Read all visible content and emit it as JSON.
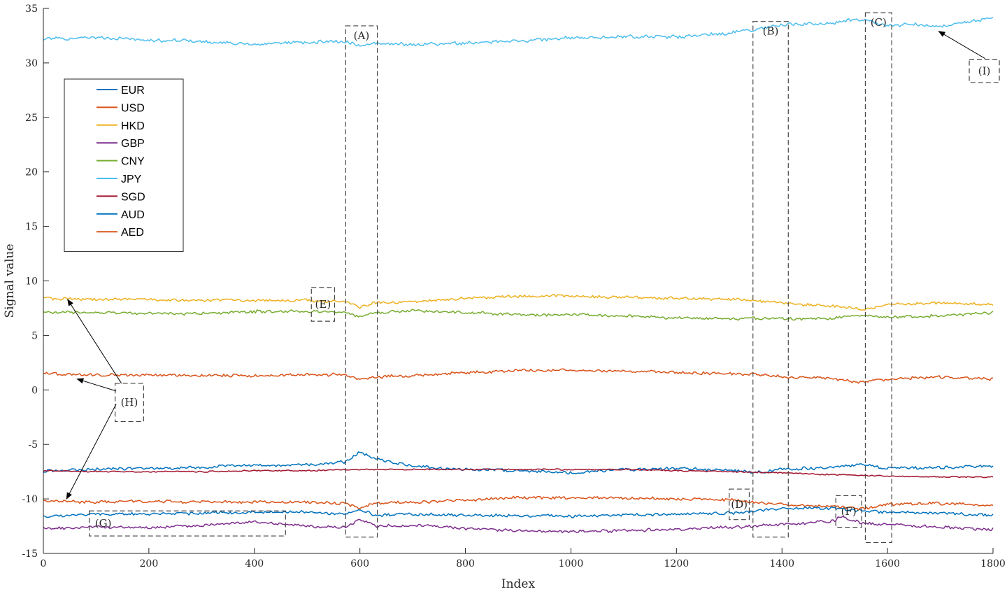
{
  "chart_data": {
    "type": "line",
    "title": "",
    "xlabel": "Index",
    "ylabel": "Signal value",
    "xlim": [
      0,
      1800
    ],
    "ylim": [
      -15,
      35
    ],
    "xticks": [
      0,
      200,
      400,
      600,
      800,
      1000,
      1200,
      1400,
      1600,
      1800
    ],
    "yticks": [
      -15,
      -10,
      -5,
      0,
      5,
      10,
      15,
      20,
      25,
      30,
      35
    ],
    "grid": false,
    "legend_position": "top-left",
    "series": [
      {
        "name": "EUR",
        "color": "#0072BD",
        "x": [
          0,
          100,
          200,
          300,
          400,
          500,
          570,
          600,
          630,
          700,
          800,
          900,
          1000,
          1100,
          1200,
          1300,
          1350,
          1400,
          1450,
          1500,
          1550,
          1600,
          1700,
          1800
        ],
        "y": [
          -7.4,
          -7.3,
          -7.2,
          -7.1,
          -6.9,
          -6.9,
          -6.6,
          -5.7,
          -6.3,
          -7.0,
          -7.3,
          -7.4,
          -7.6,
          -7.3,
          -7.2,
          -7.4,
          -7.6,
          -7.3,
          -7.2,
          -7.1,
          -6.8,
          -7.2,
          -7.1,
          -7.0
        ]
      },
      {
        "name": "USD",
        "color": "#D95319",
        "x": [
          0,
          100,
          200,
          300,
          400,
          500,
          570,
          600,
          630,
          700,
          800,
          900,
          1000,
          1100,
          1200,
          1300,
          1350,
          1400,
          1450,
          1500,
          1550,
          1600,
          1700,
          1800
        ],
        "y": [
          1.5,
          1.4,
          1.4,
          1.3,
          1.3,
          1.4,
          1.4,
          0.9,
          1.2,
          1.3,
          1.6,
          1.8,
          1.8,
          1.7,
          1.6,
          1.5,
          1.4,
          1.2,
          1.1,
          1.0,
          0.7,
          1.0,
          1.2,
          1.0
        ]
      },
      {
        "name": "HKD",
        "color": "#EDB120",
        "x": [
          0,
          100,
          200,
          300,
          400,
          500,
          570,
          600,
          630,
          700,
          800,
          900,
          1000,
          1100,
          1200,
          1300,
          1350,
          1400,
          1450,
          1500,
          1550,
          1600,
          1700,
          1800
        ],
        "y": [
          8.4,
          8.3,
          8.3,
          8.2,
          8.2,
          8.2,
          8.1,
          7.6,
          8.0,
          8.1,
          8.4,
          8.6,
          8.6,
          8.5,
          8.4,
          8.3,
          8.2,
          8.0,
          7.8,
          7.7,
          7.4,
          7.8,
          8.0,
          7.8
        ]
      },
      {
        "name": "GBP",
        "color": "#7E2F8E",
        "x": [
          0,
          100,
          200,
          300,
          400,
          500,
          570,
          600,
          630,
          700,
          800,
          900,
          1000,
          1100,
          1200,
          1300,
          1350,
          1400,
          1450,
          1500,
          1510,
          1550,
          1600,
          1700,
          1800
        ],
        "y": [
          -12.7,
          -12.6,
          -12.6,
          -12.4,
          -12.1,
          -12.5,
          -12.6,
          -11.9,
          -12.5,
          -12.4,
          -12.7,
          -12.9,
          -13.0,
          -12.9,
          -12.8,
          -12.6,
          -12.5,
          -12.3,
          -12.2,
          -12.0,
          -11.6,
          -12.2,
          -12.3,
          -12.6,
          -12.8
        ]
      },
      {
        "name": "CNY",
        "color": "#77AC30",
        "x": [
          0,
          100,
          200,
          300,
          400,
          500,
          570,
          600,
          630,
          700,
          800,
          900,
          1000,
          1100,
          1200,
          1300,
          1350,
          1400,
          1450,
          1500,
          1550,
          1600,
          1700,
          1800
        ],
        "y": [
          7.1,
          7.1,
          7.0,
          7.0,
          7.2,
          7.2,
          7.2,
          6.7,
          7.1,
          7.3,
          7.1,
          6.9,
          6.9,
          6.8,
          6.6,
          6.5,
          6.6,
          6.6,
          6.5,
          6.6,
          6.8,
          6.7,
          6.8,
          7.1
        ]
      },
      {
        "name": "JPY",
        "color": "#4DBEEE",
        "x": [
          0,
          100,
          200,
          300,
          400,
          500,
          570,
          600,
          630,
          700,
          800,
          900,
          1000,
          1100,
          1200,
          1300,
          1350,
          1400,
          1450,
          1500,
          1550,
          1600,
          1650,
          1700,
          1800
        ],
        "y": [
          32.2,
          32.3,
          32.1,
          32.0,
          31.7,
          31.9,
          32.0,
          31.6,
          31.8,
          31.7,
          31.8,
          32.0,
          32.3,
          32.4,
          32.4,
          32.7,
          33.1,
          33.5,
          33.6,
          33.7,
          34.0,
          33.4,
          33.6,
          33.3,
          34.1
        ]
      },
      {
        "name": "SGD",
        "color": "#A2142F",
        "x": [
          0,
          100,
          200,
          300,
          400,
          500,
          600,
          700,
          800,
          900,
          1000,
          1100,
          1200,
          1300,
          1400,
          1500,
          1600,
          1700,
          1800
        ],
        "y": [
          -7.4,
          -7.5,
          -7.5,
          -7.5,
          -7.4,
          -7.4,
          -7.3,
          -7.3,
          -7.3,
          -7.3,
          -7.3,
          -7.3,
          -7.4,
          -7.5,
          -7.6,
          -7.8,
          -7.9,
          -8.0,
          -8.0
        ]
      },
      {
        "name": "AUD",
        "color": "#0072BD",
        "x": [
          0,
          100,
          200,
          300,
          400,
          500,
          570,
          600,
          630,
          700,
          800,
          900,
          1000,
          1100,
          1200,
          1300,
          1350,
          1400,
          1450,
          1500,
          1550,
          1600,
          1700,
          1800
        ],
        "y": [
          -11.6,
          -11.4,
          -11.4,
          -11.3,
          -11.2,
          -11.2,
          -11.4,
          -11.0,
          -11.5,
          -11.4,
          -11.5,
          -11.5,
          -11.6,
          -11.5,
          -11.4,
          -11.3,
          -11.1,
          -10.9,
          -10.8,
          -10.9,
          -11.1,
          -11.2,
          -11.3,
          -11.5
        ]
      },
      {
        "name": "AED",
        "color": "#D95319",
        "x": [
          0,
          100,
          200,
          300,
          400,
          500,
          570,
          600,
          630,
          700,
          800,
          900,
          1000,
          1100,
          1200,
          1300,
          1350,
          1400,
          1450,
          1500,
          1550,
          1600,
          1700,
          1800
        ],
        "y": [
          -10.2,
          -10.3,
          -10.2,
          -10.3,
          -10.3,
          -10.3,
          -10.4,
          -10.8,
          -10.4,
          -10.3,
          -10.1,
          -9.9,
          -9.9,
          -9.9,
          -10.0,
          -10.1,
          -10.3,
          -10.5,
          -10.6,
          -10.7,
          -10.9,
          -10.5,
          -10.4,
          -10.6
        ]
      }
    ],
    "annotations": [
      {
        "label": "(A)",
        "box": {
          "x0": 573,
          "x1": 633,
          "y0": -13.5,
          "y1": 33.4
        }
      },
      {
        "label": "(B)",
        "box": {
          "x0": 1345,
          "x1": 1412,
          "y0": -13.5,
          "y1": 33.8
        }
      },
      {
        "label": "(C)",
        "box": {
          "x0": 1558,
          "x1": 1608,
          "y0": -14.0,
          "y1": 34.6
        }
      },
      {
        "label": "(D)",
        "box": {
          "x0": 1300,
          "x1": 1338,
          "y0": -11.9,
          "y1": -9.1
        }
      },
      {
        "label": "(E)",
        "box": {
          "x0": 508,
          "x1": 552,
          "y0": 6.3,
          "y1": 9.4
        }
      },
      {
        "label": "(F)",
        "box": {
          "x0": 1502,
          "x1": 1551,
          "y0": -12.6,
          "y1": -9.7
        }
      },
      {
        "label": "(G)",
        "box": {
          "x0": 87,
          "x1": 459,
          "y0": -13.4,
          "y1": -11.1
        }
      },
      {
        "label": "(H)",
        "box": {
          "x0": 136,
          "x1": 190,
          "y0": -2.9,
          "y1": 0.6
        },
        "arrows": [
          {
            "from": [
              148,
              0.6
            ],
            "to": [
              46,
              8.3
            ]
          },
          {
            "from": [
              138,
              -0.1
            ],
            "to": [
              64,
              1.0
            ]
          },
          {
            "from": [
              138,
              -1.3
            ],
            "to": [
              44,
              -10.0
            ]
          }
        ]
      },
      {
        "label": "(I)",
        "box": {
          "x0": 1755,
          "x1": 1812,
          "y0": 28.2,
          "y1": 30.3
        },
        "arrows": [
          {
            "from": [
              1785,
              30.4
            ],
            "to": [
              1697,
              32.9
            ]
          }
        ]
      }
    ]
  }
}
